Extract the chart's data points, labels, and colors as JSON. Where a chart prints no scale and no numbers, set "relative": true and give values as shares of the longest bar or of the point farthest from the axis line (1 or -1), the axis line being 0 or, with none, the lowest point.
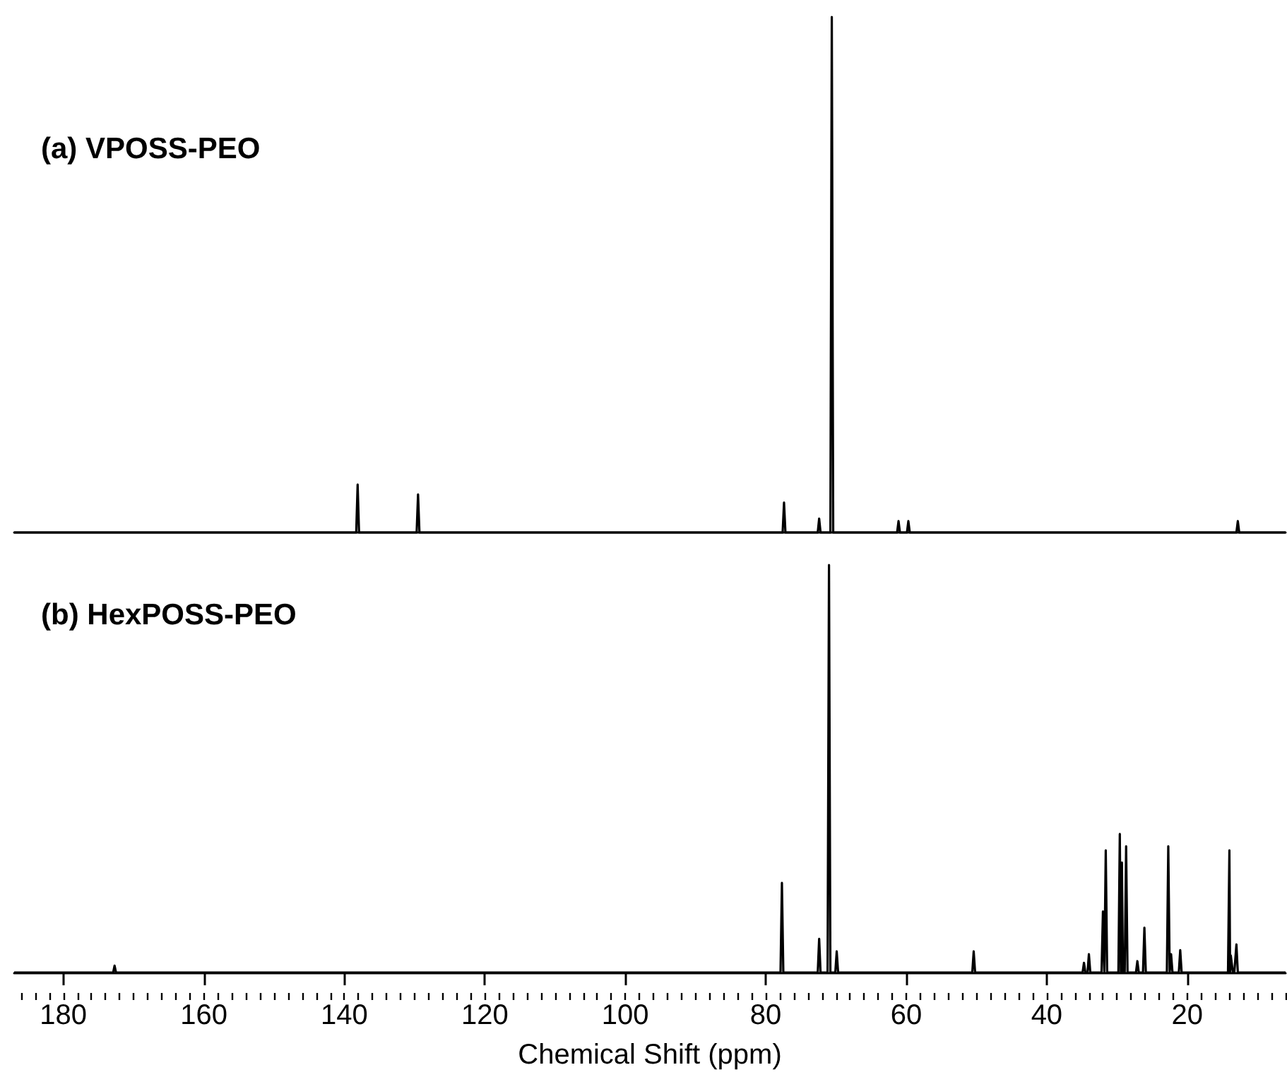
{
  "chart_data": [
    {
      "type": "line",
      "title": "(a) VPOSS-PEO",
      "relative": true,
      "xlim": [
        187,
        6
      ],
      "tick_labels": false,
      "marker": "none",
      "line_style": "solid",
      "series": [
        {
          "color": "#000000",
          "x": [
            187,
            138.3,
            138.1,
            137.9,
            129.7,
            129.5,
            129.3,
            77.6,
            77.4,
            77.2,
            72.6,
            72.4,
            72.2,
            70.8,
            70.6,
            70.4,
            61.3,
            61.1,
            60.9,
            59.9,
            59.7,
            59.5,
            13.0,
            12.8,
            12.6,
            6
          ],
          "values": [
            0,
            0,
            0.093,
            0,
            0,
            0.074,
            0,
            0,
            0.058,
            0,
            0,
            0.027,
            0,
            0,
            1,
            0,
            0,
            0.022,
            0,
            0,
            0.022,
            0,
            0,
            0.022,
            0,
            0
          ]
        }
      ]
    },
    {
      "type": "line",
      "title": "(b) HexPOSS-PEO",
      "relative": true,
      "xlim": [
        187,
        6
      ],
      "xticks": [
        180,
        160,
        140,
        120,
        100,
        80,
        60,
        40,
        20
      ],
      "xlabel": "Chemical Shift (ppm)",
      "tick_labels": "x",
      "marker": "none",
      "line_style": "solid",
      "series": [
        {
          "color": "#000000",
          "x": [
            187,
            172.9,
            172.7,
            172.5,
            77.9,
            77.7,
            77.5,
            72.6,
            72.4,
            72.2,
            71.2,
            71.0,
            70.8,
            70.1,
            69.9,
            69.7,
            50.6,
            50.4,
            50.2,
            34.9,
            34.7,
            34.5,
            34.2,
            34.0,
            33.8,
            32.2,
            32.0,
            31.8,
            31.6,
            31.4,
            29.8,
            29.6,
            29.45,
            29.3,
            29.15,
            28.9,
            28.7,
            28.5,
            27.3,
            27.1,
            26.9,
            26.3,
            26.1,
            25.9,
            22.9,
            22.7,
            22.5,
            22.3,
            22.1,
            21.2,
            21.0,
            20.8,
            14.2,
            14.0,
            13.9,
            13.8,
            13.5,
            13.3,
            13.0,
            12.8,
            6
          ],
          "values": [
            0,
            0,
            0.017,
            0,
            0,
            0.22,
            0,
            0,
            0.083,
            0,
            0,
            1,
            0,
            0,
            0.052,
            0,
            0,
            0.052,
            0,
            0,
            0.024,
            0,
            0,
            0.045,
            0,
            0,
            0.15,
            0,
            0.3,
            0,
            0,
            0.34,
            0,
            0.27,
            0,
            0,
            0.31,
            0,
            0,
            0.028,
            0,
            0,
            0.11,
            0,
            0,
            0.31,
            0,
            0.045,
            0,
            0,
            0.055,
            0,
            0,
            0.3,
            0,
            0.042,
            0,
            0,
            0.069,
            0,
            0
          ]
        }
      ]
    }
  ]
}
